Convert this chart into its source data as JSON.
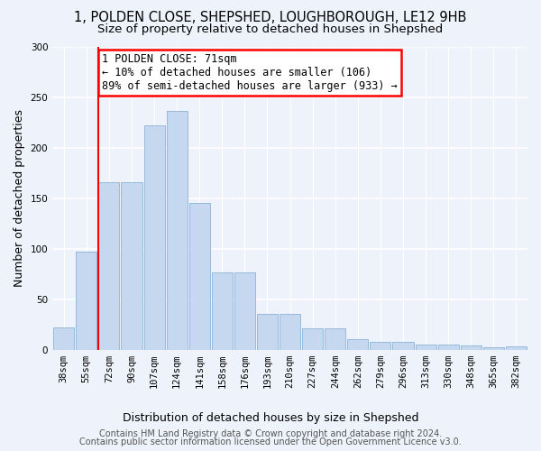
{
  "title1": "1, POLDEN CLOSE, SHEPSHED, LOUGHBOROUGH, LE12 9HB",
  "title2": "Size of property relative to detached houses in Shepshed",
  "xlabel": "Distribution of detached houses by size in Shepshed",
  "ylabel": "Number of detached properties",
  "categories": [
    "38sqm",
    "55sqm",
    "72sqm",
    "90sqm",
    "107sqm",
    "124sqm",
    "141sqm",
    "158sqm",
    "176sqm",
    "193sqm",
    "210sqm",
    "227sqm",
    "244sqm",
    "262sqm",
    "279sqm",
    "296sqm",
    "313sqm",
    "330sqm",
    "348sqm",
    "365sqm",
    "382sqm"
  ],
  "values": [
    22,
    97,
    166,
    166,
    222,
    236,
    145,
    76,
    76,
    35,
    35,
    21,
    21,
    10,
    8,
    8,
    5,
    5,
    4,
    2,
    3
  ],
  "bar_color": "#c5d8f0",
  "bar_edge_color": "#8ab4d8",
  "annotation_text": "1 POLDEN CLOSE: 71sqm\n← 10% of detached houses are smaller (106)\n89% of semi-detached houses are larger (933) →",
  "annotation_box_color": "white",
  "annotation_box_edge_color": "red",
  "line_color": "red",
  "ylim": [
    0,
    300
  ],
  "yticks": [
    0,
    50,
    100,
    150,
    200,
    250,
    300
  ],
  "footer1": "Contains HM Land Registry data © Crown copyright and database right 2024.",
  "footer2": "Contains public sector information licensed under the Open Government Licence v3.0.",
  "bg_color": "#eef2fa",
  "title_fontsize": 10.5,
  "subtitle_fontsize": 9.5,
  "ylabel_fontsize": 9,
  "xlabel_fontsize": 9,
  "tick_fontsize": 7.5,
  "footer_fontsize": 7,
  "annotation_fontsize": 8.5
}
